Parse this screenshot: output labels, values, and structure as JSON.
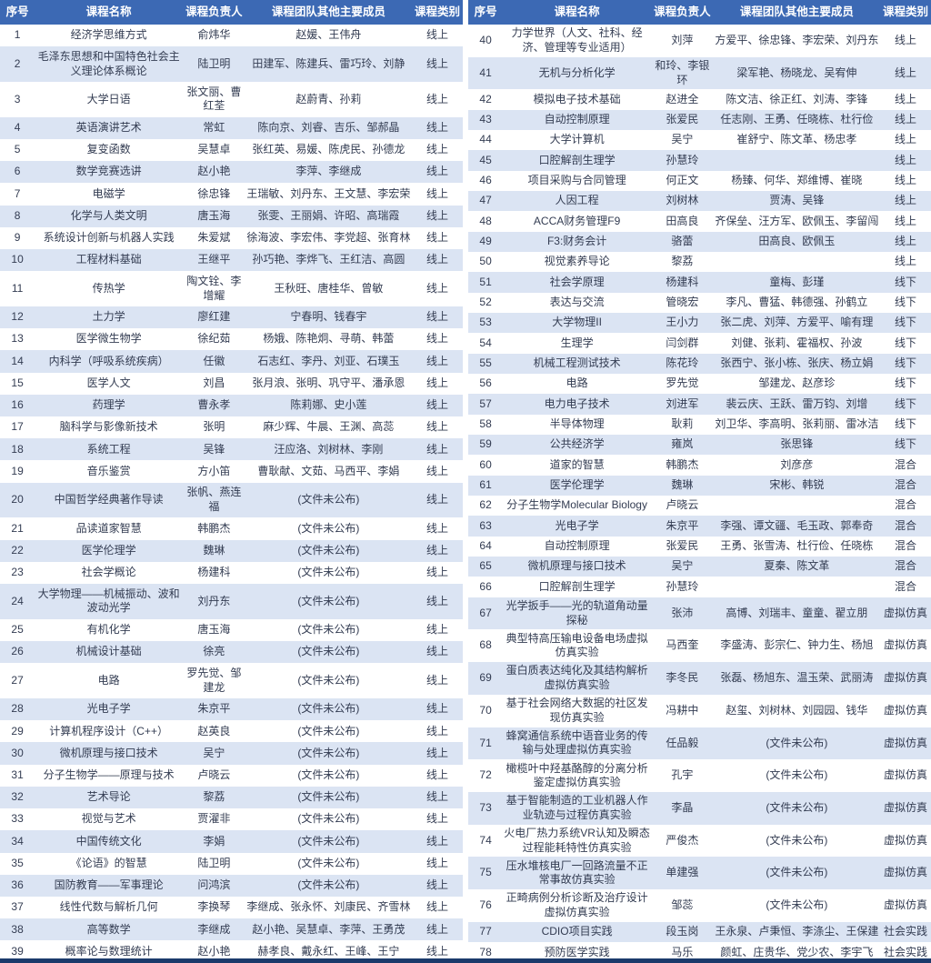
{
  "colors": {
    "header_bg": "#3c69b4",
    "alt_row": "#dbe4f3",
    "text": "#333c52",
    "header_text": "#ffffff",
    "bottom_bar": "#1b3a6b"
  },
  "table_left": {
    "headers": [
      "序号",
      "课程名称",
      "课程负责人",
      "课程团队其他主要成员",
      "课程类别"
    ],
    "rows": [
      [
        "1",
        "经济学思维方式",
        "俞炜华",
        "赵媛、王伟舟",
        "线上"
      ],
      [
        "2",
        "毛泽东思想和中国特色社会主义理论体系概论",
        "陆卫明",
        "田建军、陈建兵、雷巧玲、刘静",
        "线上"
      ],
      [
        "3",
        "大学日语",
        "张文丽、曹红荃",
        "赵蔚青、孙莉",
        "线上"
      ],
      [
        "4",
        "英语演讲艺术",
        "常虹",
        "陈向京、刘睿、吉乐、邹郝晶",
        "线上"
      ],
      [
        "5",
        "复变函数",
        "吴慧卓",
        "张红英、易媛、陈虎民、孙德龙",
        "线上"
      ],
      [
        "6",
        "数学竞赛选讲",
        "赵小艳",
        "李萍、李继成",
        "线上"
      ],
      [
        "7",
        "电磁学",
        "徐忠锋",
        "王瑞敏、刘丹东、王文慧、李宏荣",
        "线上"
      ],
      [
        "8",
        "化学与人类文明",
        "唐玉海",
        "张雯、王丽娟、许昭、高瑞霞",
        "线上"
      ],
      [
        "9",
        "系统设计创新与机器人实践",
        "朱爱斌",
        "徐海波、李宏伟、李党超、张育林",
        "线上"
      ],
      [
        "10",
        "工程材料基础",
        "王继平",
        "孙巧艳、李烨飞、王红洁、高圆",
        "线上"
      ],
      [
        "11",
        "传热学",
        "陶文铨、李增耀",
        "王秋旺、唐桂华、曾敏",
        "线上"
      ],
      [
        "12",
        "土力学",
        "廖红建",
        "宁春明、钱春宇",
        "线上"
      ],
      [
        "13",
        "医学微生物学",
        "徐纪茹",
        "杨娥、陈艳炯、寻萌、韩蕾",
        "线上"
      ],
      [
        "14",
        "内科学（呼吸系统疾病）",
        "任徽",
        "石志红、李丹、刘亚、石璞玉",
        "线上"
      ],
      [
        "15",
        "医学人文",
        "刘昌",
        "张月浪、张明、巩守平、潘承恩",
        "线上"
      ],
      [
        "16",
        "药理学",
        "曹永孝",
        "陈莉娜、史小莲",
        "线上"
      ],
      [
        "17",
        "脑科学与影像新技术",
        "张明",
        "麻少辉、牛晨、王渊、高蕊",
        "线上"
      ],
      [
        "18",
        "系统工程",
        "吴锋",
        "汪应洛、刘树林、李刚",
        "线上"
      ],
      [
        "19",
        "音乐鉴赏",
        "方小笛",
        "曹耿献、文茹、马西平、李娟",
        "线上"
      ],
      [
        "20",
        "中国哲学经典著作导读",
        "张帆、燕连福",
        "(文件未公布)",
        "线上"
      ],
      [
        "21",
        "品读道家智慧",
        "韩鹏杰",
        "(文件未公布)",
        "线上"
      ],
      [
        "22",
        "医学伦理学",
        "魏琳",
        "(文件未公布)",
        "线上"
      ],
      [
        "23",
        "社会学概论",
        "杨建科",
        "(文件未公布)",
        "线上"
      ],
      [
        "24",
        "大学物理——机械振动、波和波动光学",
        "刘丹东",
        "(文件未公布)",
        "线上"
      ],
      [
        "25",
        "有机化学",
        "唐玉海",
        "(文件未公布)",
        "线上"
      ],
      [
        "26",
        "机械设计基础",
        "徐亮",
        "(文件未公布)",
        "线上"
      ],
      [
        "27",
        "电路",
        "罗先觉、邹建龙",
        "(文件未公布)",
        "线上"
      ],
      [
        "28",
        "光电子学",
        "朱京平",
        "(文件未公布)",
        "线上"
      ],
      [
        "29",
        "计算机程序设计（C++）",
        "赵英良",
        "(文件未公布)",
        "线上"
      ],
      [
        "30",
        "微机原理与接口技术",
        "吴宁",
        "(文件未公布)",
        "线上"
      ],
      [
        "31",
        "分子生物学——原理与技术",
        "卢晓云",
        "(文件未公布)",
        "线上"
      ],
      [
        "32",
        "艺术导论",
        "黎荔",
        "(文件未公布)",
        "线上"
      ],
      [
        "33",
        "视觉与艺术",
        "贾濯非",
        "(文件未公布)",
        "线上"
      ],
      [
        "34",
        "中国传统文化",
        "李娟",
        "(文件未公布)",
        "线上"
      ],
      [
        "35",
        "《论语》的智慧",
        "陆卫明",
        "(文件未公布)",
        "线上"
      ],
      [
        "36",
        "国防教育——军事理论",
        "问鸿滨",
        "(文件未公布)",
        "线上"
      ],
      [
        "37",
        "线性代数与解析几何",
        "李换琴",
        "李继成、张永怀、刘康民、齐雪林",
        "线上"
      ],
      [
        "38",
        "高等数学",
        "李继成",
        "赵小艳、吴慧卓、李萍、王勇茂",
        "线上"
      ],
      [
        "39",
        "概率论与数理统计",
        "赵小艳",
        "赫孝良、戴永红、王峰、王宁",
        "线上"
      ]
    ]
  },
  "table_right": {
    "headers": [
      "序号",
      "课程名称",
      "课程负责人",
      "课程团队其他主要成员",
      "课程类别"
    ],
    "rows": [
      [
        "40",
        "力学世界（人文、社科、经济、管理等专业适用）",
        "刘萍",
        "方爱平、徐忠锋、李宏荣、刘丹东",
        "线上"
      ],
      [
        "41",
        "无机与分析化学",
        "和玲、李银环",
        "梁军艳、杨晓龙、吴宥伸",
        "线上"
      ],
      [
        "42",
        "模拟电子技术基础",
        "赵进全",
        "陈文洁、徐正红、刘涛、李锋",
        "线上"
      ],
      [
        "43",
        "自动控制原理",
        "张爱民",
        "任志刚、王勇、任晓栋、杜行俭",
        "线上"
      ],
      [
        "44",
        "大学计算机",
        "吴宁",
        "崔舒宁、陈文革、杨忠孝",
        "线上"
      ],
      [
        "45",
        "口腔解剖生理学",
        "孙慧玲",
        "",
        "线上"
      ],
      [
        "46",
        "项目采购与合同管理",
        "何正文",
        "杨臻、何华、郑维博、崔晓",
        "线上"
      ],
      [
        "47",
        "人因工程",
        "刘树林",
        "贾涛、吴锋",
        "线上"
      ],
      [
        "48",
        "ACCA财务管理F9",
        "田高良",
        "齐保垒、汪方军、欧佩玉、李留闯",
        "线上"
      ],
      [
        "49",
        "F3:财务会计",
        "骆蕾",
        "田高良、欧佩玉",
        "线上"
      ],
      [
        "50",
        "视觉素养导论",
        "黎荔",
        "",
        "线上"
      ],
      [
        "51",
        "社会学原理",
        "杨建科",
        "童梅、彭瑾",
        "线下"
      ],
      [
        "52",
        "表达与交流",
        "管晓宏",
        "李凡、曹猛、韩德强、孙鹤立",
        "线下"
      ],
      [
        "53",
        "大学物理II",
        "王小力",
        "张二虎、刘萍、方爱平、喻有理",
        "线下"
      ],
      [
        "54",
        "生理学",
        "闫剑群",
        "刘健、张莉、霍福权、孙波",
        "线下"
      ],
      [
        "55",
        "机械工程测试技术",
        "陈花玲",
        "张西宁、张小栋、张庆、杨立娟",
        "线下"
      ],
      [
        "56",
        "电路",
        "罗先觉",
        "邹建龙、赵彦珍",
        "线下"
      ],
      [
        "57",
        "电力电子技术",
        "刘进军",
        "裴云庆、王跃、雷万钧、刘增",
        "线下"
      ],
      [
        "58",
        "半导体物理",
        "耿莉",
        "刘卫华、李高明、张莉丽、雷冰洁",
        "线下"
      ],
      [
        "59",
        "公共经济学",
        "雍岚",
        "张思锋",
        "线下"
      ],
      [
        "60",
        "道家的智慧",
        "韩鹏杰",
        "刘彦彦",
        "混合"
      ],
      [
        "61",
        "医学伦理学",
        "魏琳",
        "宋彬、韩锐",
        "混合"
      ],
      [
        "62",
        "分子生物学Molecular Biology",
        "卢晓云",
        "",
        "混合"
      ],
      [
        "63",
        "光电子学",
        "朱京平",
        "李强、谭文疆、毛玉政、郭奉奇",
        "混合"
      ],
      [
        "64",
        "自动控制原理",
        "张爱民",
        "王勇、张雪涛、杜行俭、任晓栋",
        "混合"
      ],
      [
        "65",
        "微机原理与接口技术",
        "吴宁",
        "夏秦、陈文革",
        "混合"
      ],
      [
        "66",
        "口腔解剖生理学",
        "孙慧玲",
        "",
        "混合"
      ],
      [
        "67",
        "光学扳手——光的轨道角动量探秘",
        "张沛",
        "高博、刘瑞丰、童童、翟立朋",
        "虚拟仿真"
      ],
      [
        "68",
        "典型特高压输电设备电场虚拟仿真实验",
        "马西奎",
        "李盛涛、彭宗仁、钟力生、杨旭",
        "虚拟仿真"
      ],
      [
        "69",
        "蛋白质表达纯化及其结构解析虚拟仿真实验",
        "李冬民",
        "张磊、杨旭东、温玉荣、武丽涛",
        "虚拟仿真"
      ],
      [
        "70",
        "基于社会网络大数据的社区发现仿真实验",
        "冯耕中",
        "赵玺、刘树林、刘园园、钱华",
        "虚拟仿真"
      ],
      [
        "71",
        "蜂窝通信系统中语音业务的传输与处理虚拟仿真实验",
        "任品毅",
        "(文件未公布)",
        "虚拟仿真"
      ],
      [
        "72",
        "橄榄叶中羟基酪醇的分离分析鉴定虚拟仿真实验",
        "孔宇",
        "(文件未公布)",
        "虚拟仿真"
      ],
      [
        "73",
        "基于智能制造的工业机器人作业轨迹与过程仿真实验",
        "李晶",
        "(文件未公布)",
        "虚拟仿真"
      ],
      [
        "74",
        "火电厂热力系统VR认知及瞬态过程能耗特性仿真实验",
        "严俊杰",
        "(文件未公布)",
        "虚拟仿真"
      ],
      [
        "75",
        "压水堆核电厂一回路流量不正常事故仿真实验",
        "单建强",
        "(文件未公布)",
        "虚拟仿真"
      ],
      [
        "76",
        "正畸病例分析诊断及治疗设计虚拟仿真实验",
        "邹蕊",
        "(文件未公布)",
        "虚拟仿真"
      ],
      [
        "77",
        "CDIO项目实践",
        "段玉岗",
        "王永泉、卢秉恒、李涤尘、王保建",
        "社会实践"
      ],
      [
        "78",
        "预防医学实践",
        "马乐",
        "颜虹、庄贵华、党少农、李宇飞",
        "社会实践"
      ]
    ]
  }
}
